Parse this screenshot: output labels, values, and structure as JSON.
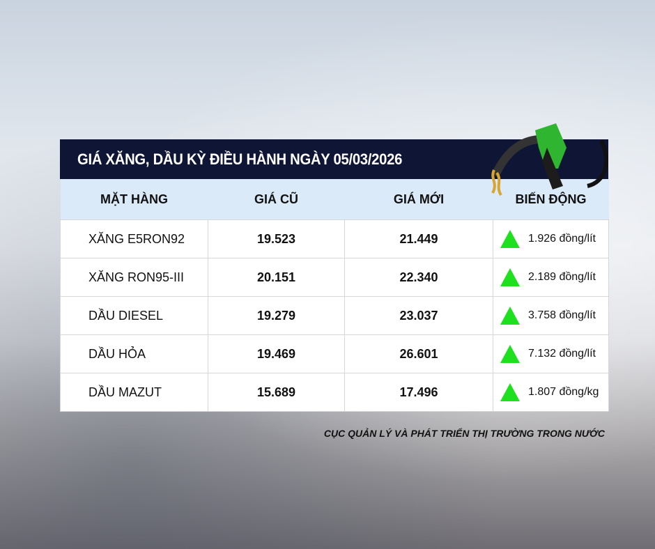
{
  "title": "GIÁ XĂNG, DẦU KỲ ĐIỀU HÀNH NGÀY 05/03/2026",
  "columns": [
    "MẶT HÀNG",
    "GIÁ CŨ",
    "GIÁ MỚI",
    "BIẾN ĐỘNG"
  ],
  "rows": [
    {
      "name": "XĂNG E5RON92",
      "old": "19.523",
      "new": "21.449",
      "change": "1.926 đồng/lít"
    },
    {
      "name": "XĂNG RON95-III",
      "old": "20.151",
      "new": "22.340",
      "change": "2.189 đồng/lít"
    },
    {
      "name": "DẦU DIESEL",
      "old": "19.279",
      "new": "23.037",
      "change": "3.758 đồng/lít"
    },
    {
      "name": "DẦU HỎA",
      "old": "19.469",
      "new": "26.601",
      "change": "7.132 đồng/lít"
    },
    {
      "name": "DẦU MAZUT",
      "old": "15.689",
      "new": "17.496",
      "change": "1.807 đồng/kg"
    }
  ],
  "source": "CỤC QUẢN LÝ VÀ PHÁT TRIỂN THỊ TRƯỜNG TRONG NƯỚC",
  "colors": {
    "title_bg": "#0f1535",
    "header_bg": "#dbeaf8",
    "up_arrow": "#1fe01f"
  },
  "icons": {
    "change": "triangle-up-icon",
    "decoration": "fuel-nozzle-icon"
  }
}
